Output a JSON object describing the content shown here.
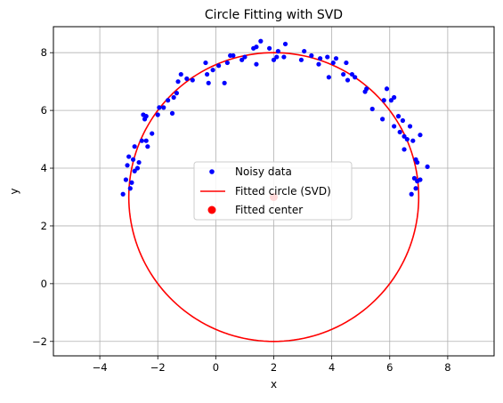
{
  "chart_data": {
    "type": "scatter",
    "title": "Circle Fitting with SVD",
    "xlabel": "x",
    "ylabel": "y",
    "xlim": [
      -5.6,
      9.6
    ],
    "ylim": [
      -2.5,
      8.9
    ],
    "xticks": [
      -4,
      -2,
      0,
      2,
      4,
      6,
      8
    ],
    "yticks": [
      -2,
      0,
      2,
      4,
      6,
      8
    ],
    "grid": true,
    "legend_position": "center",
    "colors": {
      "noisy": "#0000ff",
      "circle": "#ff0000",
      "center": "#ff0000"
    },
    "series": [
      {
        "name": "Noisy data",
        "kind": "scatter",
        "points": [
          [
            -3.2,
            3.1
          ],
          [
            -3.1,
            3.6
          ],
          [
            -3.05,
            4.1
          ],
          [
            -3.0,
            4.4
          ],
          [
            -2.95,
            3.3
          ],
          [
            -2.9,
            3.5
          ],
          [
            -2.85,
            4.3
          ],
          [
            -2.8,
            3.9
          ],
          [
            -2.8,
            4.75
          ],
          [
            -2.7,
            4.0
          ],
          [
            -2.65,
            4.2
          ],
          [
            -2.55,
            4.95
          ],
          [
            -2.5,
            5.85
          ],
          [
            -2.45,
            5.7
          ],
          [
            -2.4,
            4.95
          ],
          [
            -2.4,
            5.8
          ],
          [
            -2.35,
            4.75
          ],
          [
            -2.2,
            5.2
          ],
          [
            -2.0,
            5.85
          ],
          [
            -1.95,
            6.1
          ],
          [
            -1.8,
            6.1
          ],
          [
            -1.65,
            6.35
          ],
          [
            -1.5,
            5.9
          ],
          [
            -1.45,
            6.45
          ],
          [
            -1.35,
            6.6
          ],
          [
            -1.3,
            7.0
          ],
          [
            -1.2,
            7.25
          ],
          [
            -1.0,
            7.1
          ],
          [
            -0.8,
            7.05
          ],
          [
            -0.35,
            7.65
          ],
          [
            -0.3,
            7.25
          ],
          [
            -0.25,
            6.95
          ],
          [
            -0.1,
            7.4
          ],
          [
            0.1,
            7.55
          ],
          [
            0.3,
            6.95
          ],
          [
            0.4,
            7.65
          ],
          [
            0.5,
            7.9
          ],
          [
            0.6,
            7.9
          ],
          [
            0.9,
            7.75
          ],
          [
            1.0,
            7.85
          ],
          [
            1.3,
            8.15
          ],
          [
            1.4,
            7.6
          ],
          [
            1.4,
            8.2
          ],
          [
            1.55,
            8.4
          ],
          [
            1.85,
            8.15
          ],
          [
            2.0,
            7.75
          ],
          [
            2.1,
            7.85
          ],
          [
            2.15,
            8.05
          ],
          [
            2.35,
            7.85
          ],
          [
            2.4,
            8.3
          ],
          [
            2.95,
            7.75
          ],
          [
            3.05,
            8.05
          ],
          [
            3.3,
            7.9
          ],
          [
            3.55,
            7.6
          ],
          [
            3.6,
            7.8
          ],
          [
            3.85,
            7.85
          ],
          [
            3.9,
            7.15
          ],
          [
            4.05,
            7.65
          ],
          [
            4.15,
            7.8
          ],
          [
            4.4,
            7.25
          ],
          [
            4.5,
            7.65
          ],
          [
            4.55,
            7.05
          ],
          [
            4.7,
            7.25
          ],
          [
            4.8,
            7.15
          ],
          [
            5.15,
            6.65
          ],
          [
            5.2,
            6.75
          ],
          [
            5.4,
            6.05
          ],
          [
            5.75,
            5.7
          ],
          [
            5.8,
            6.35
          ],
          [
            5.9,
            6.75
          ],
          [
            6.05,
            6.35
          ],
          [
            6.15,
            5.45
          ],
          [
            6.15,
            6.45
          ],
          [
            6.3,
            5.8
          ],
          [
            6.35,
            5.25
          ],
          [
            6.45,
            5.65
          ],
          [
            6.5,
            4.65
          ],
          [
            6.5,
            5.1
          ],
          [
            6.6,
            5.0
          ],
          [
            6.7,
            5.45
          ],
          [
            6.75,
            3.1
          ],
          [
            6.8,
            4.95
          ],
          [
            6.85,
            3.65
          ],
          [
            6.9,
            3.3
          ],
          [
            6.9,
            4.3
          ],
          [
            6.95,
            4.2
          ],
          [
            6.95,
            3.55
          ],
          [
            7.05,
            3.6
          ],
          [
            7.05,
            5.15
          ],
          [
            7.3,
            4.05
          ]
        ]
      },
      {
        "name": "Fitted circle (SVD)",
        "kind": "circle",
        "center": [
          2.0,
          3.0
        ],
        "radius": 5.0
      },
      {
        "name": "Fitted center",
        "kind": "point",
        "point": [
          2.0,
          3.0
        ]
      }
    ]
  }
}
